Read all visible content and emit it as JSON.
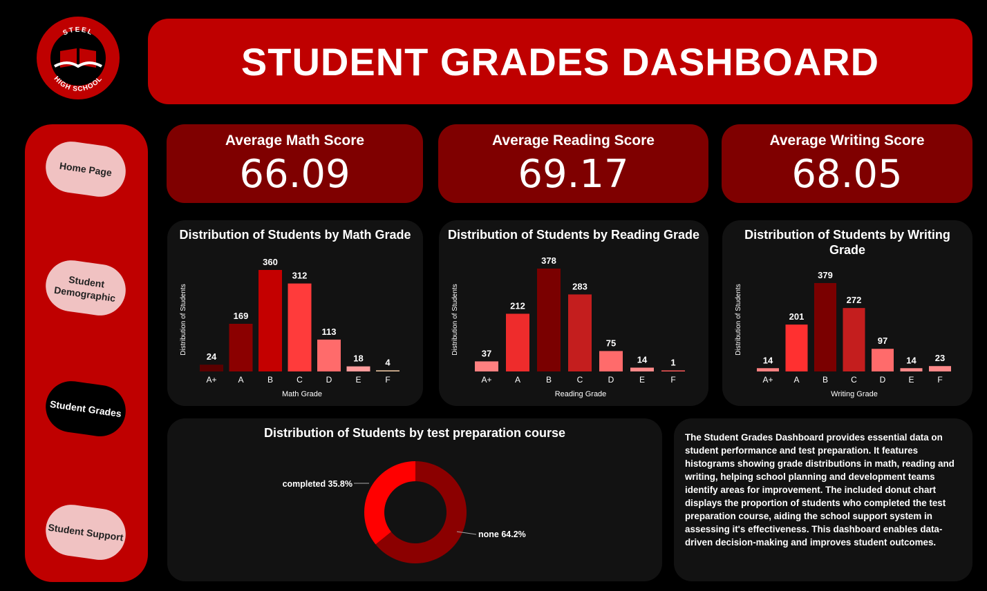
{
  "logo": {
    "top_text": "STEEL",
    "bottom_text": "HIGH SCHOOL"
  },
  "header": {
    "title": "STUDENT GRADES DASHBOARD"
  },
  "nav": [
    {
      "label": "Home Page",
      "active": false
    },
    {
      "label": "Student Demographic",
      "active": false
    },
    {
      "label": "Student Grades",
      "active": true
    },
    {
      "label": "Student Support",
      "active": false
    }
  ],
  "kpis": [
    {
      "title": "Average Math Score",
      "value": "66.09"
    },
    {
      "title": "Average Reading Score",
      "value": "69.17"
    },
    {
      "title": "Average Writing Score",
      "value": "68.05"
    }
  ],
  "chart_data": [
    {
      "type": "bar",
      "title": "Distribution of Students by Math Grade",
      "xlabel": "Math Grade",
      "ylabel": "Distribution of Students",
      "categories": [
        "A+",
        "A",
        "B",
        "C",
        "D",
        "E",
        "F"
      ],
      "values": [
        24,
        169,
        360,
        312,
        113,
        18,
        4
      ],
      "colors": [
        "#5a0000",
        "#8b0000",
        "#c40000",
        "#ff3b3b",
        "#ff6b6b",
        "#ff9c9c",
        "#e8c4a0"
      ]
    },
    {
      "type": "bar",
      "title": "Distribution of Students by Reading Grade",
      "xlabel": "Reading Grade",
      "ylabel": "Distribution of Students",
      "categories": [
        "A+",
        "A",
        "B",
        "C",
        "D",
        "E",
        "F"
      ],
      "values": [
        37,
        212,
        378,
        283,
        75,
        14,
        1
      ],
      "colors": [
        "#ff8080",
        "#ee2c2c",
        "#7a0000",
        "#c41e1e",
        "#ff6b6b",
        "#ff8a8a",
        "#ff5a5a"
      ]
    },
    {
      "type": "bar",
      "title": "Distribution of Students by Writing Grade",
      "xlabel": "Writing Grade",
      "ylabel": "Distribution of Students",
      "categories": [
        "A+",
        "A",
        "B",
        "C",
        "D",
        "E",
        "F"
      ],
      "values": [
        14,
        201,
        379,
        272,
        97,
        14,
        23
      ],
      "colors": [
        "#ff8080",
        "#ff3030",
        "#7a0000",
        "#c41e1e",
        "#ff6b6b",
        "#ff8a8a",
        "#ff8a8a"
      ]
    },
    {
      "type": "pie",
      "title": "Distribution of Students by test preparation course",
      "slices": [
        {
          "label": "none",
          "value": 64.2,
          "display": "none 64.2%",
          "color": "#8b0000"
        },
        {
          "label": "completed",
          "value": 35.8,
          "display": "completed 35.8%",
          "color": "#ff0000"
        }
      ]
    }
  ],
  "description": "The Student Grades Dashboard provides essential data on student performance and test preparation. It features histograms showing grade distributions in math, reading and writing, helping school planning and development teams identify areas for improvement. The included donut chart displays the proportion of students who completed the test preparation course, aiding the school support system in assessing it's effectiveness. This dashboard enables data-driven decision-making and improves student outcomes."
}
